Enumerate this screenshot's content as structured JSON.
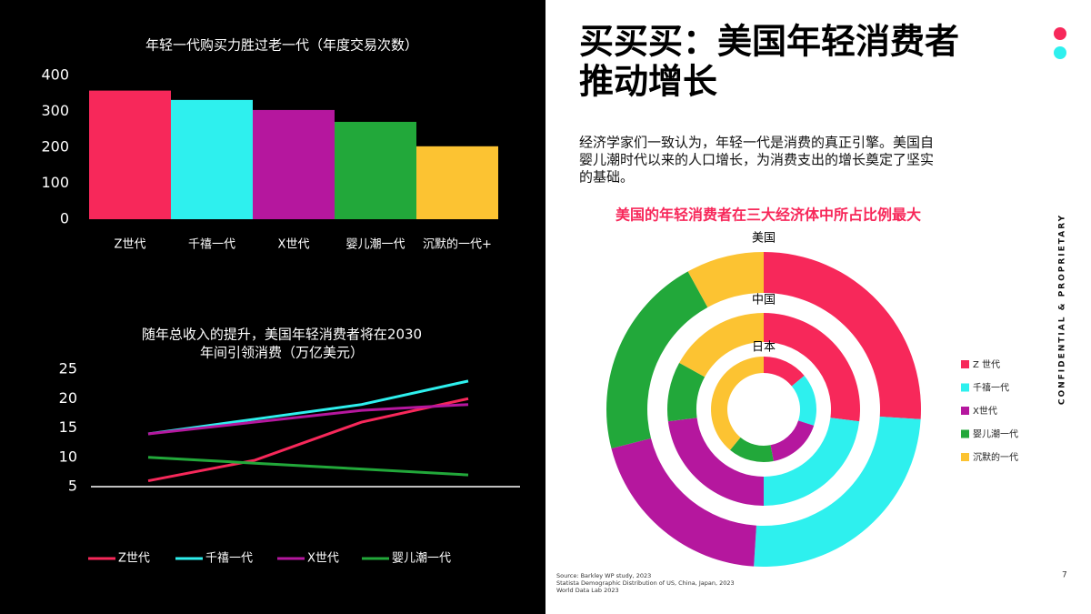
{
  "slide": {
    "title_lines": [
      "买买买：美国年轻消费者",
      "推动增长"
    ],
    "paragraph_lines": [
      "经济学家们一致认为，年轻一代是消费的真正引擎。美国自",
      "婴儿潮时代以来的人口增长，为消费支出的增长奠定了坚实",
      "的基础。"
    ],
    "side_note": "CONFIDENTIAL & PROPRIETARY",
    "page_number": "7",
    "sources": [
      "Source: Barkley WP study, 2023",
      "Statista Demographic Distribution of US, China, Japan, 2023",
      "World Data Lab 2023"
    ]
  },
  "chart_data": [
    {
      "type": "bar",
      "title": "年轻一代购买力胜过老一代（年度交易次数）",
      "categories": [
        "Z世代",
        "千禧一代",
        "X世代",
        "婴儿潮一代",
        "沉默的一代+"
      ],
      "values": [
        358,
        332,
        304,
        271,
        203
      ],
      "colors": [
        "#f7285a",
        "#2ef0ee",
        "#b5179e",
        "#22a83a",
        "#fcc332"
      ],
      "ylim": [
        0,
        400
      ],
      "yticks": [
        0,
        100,
        200,
        300,
        400
      ],
      "grid": false
    },
    {
      "type": "line",
      "title_lines": [
        "随年总收入的提升，美国年轻消费者将在2030",
        "年间引领消费（万亿美元）"
      ],
      "categories": [
        null,
        null,
        null,
        null
      ],
      "series": [
        {
          "name": "Z世代",
          "color": "#f7285a",
          "values": [
            6,
            9.5,
            16,
            20
          ]
        },
        {
          "name": "千禧一代",
          "color": "#2ef0ee",
          "values": [
            14,
            16.5,
            19,
            23
          ]
        },
        {
          "name": "X世代",
          "color": "#b5179e",
          "values": [
            14,
            16,
            18,
            19
          ]
        },
        {
          "name": "婴儿潮一代",
          "color": "#22a83a",
          "values": [
            10,
            9,
            8,
            7
          ]
        }
      ],
      "ylim": [
        5,
        25
      ],
      "yticks": [
        5,
        10,
        15,
        20,
        25
      ],
      "legend": "bottom"
    },
    {
      "type": "donut",
      "title": "美国的年轻消费者在三大经济体中所占比例最大",
      "categories": [
        "Z 世代",
        "千禧一代",
        "X世代",
        "婴儿潮一代",
        "沉默的一代"
      ],
      "colors": [
        "#f7285a",
        "#2ef0ee",
        "#b5179e",
        "#22a83a",
        "#fcc332"
      ],
      "rings": [
        {
          "name": "美国",
          "values": [
            26,
            25,
            20,
            21,
            8
          ]
        },
        {
          "name": "中国",
          "values": [
            27,
            23,
            23,
            10,
            17
          ]
        },
        {
          "name": "日本",
          "values": [
            14,
            16,
            17,
            14,
            39
          ]
        }
      ],
      "legend": "right"
    }
  ]
}
